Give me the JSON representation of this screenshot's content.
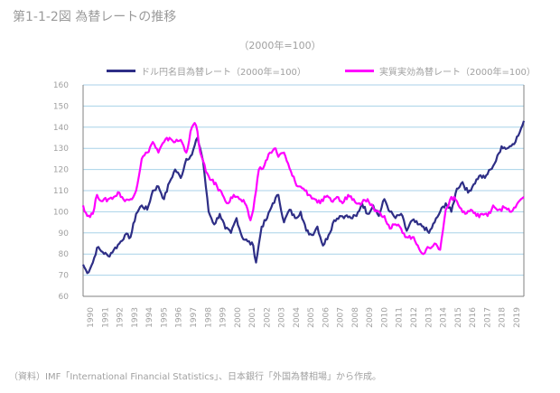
{
  "figure_label": "第1-1-2図 為替レートの推移",
  "chart_data": {
    "type": "line",
    "title": "（2000年=100）",
    "ylabel": "",
    "ylim": [
      60,
      160
    ],
    "yticks": [
      160,
      150,
      140,
      130,
      120,
      110,
      100,
      90,
      80,
      70,
      60
    ],
    "x_count": 210,
    "x_tick_labels": [
      "1990",
      "1991",
      "1992",
      "1993",
      "1994",
      "1995",
      "1996",
      "1997",
      "1998",
      "1999",
      "2000",
      "2001",
      "2002",
      "2003",
      "2004",
      "2005",
      "2006",
      "2007",
      "2008",
      "2009",
      "2010",
      "2011",
      "2012",
      "2013",
      "2014",
      "2015",
      "2016",
      "2017",
      "2018",
      "2019"
    ],
    "grid": true,
    "legend_position": "top",
    "series": [
      {
        "name": "ドル円名目為替レート（2000年=100）",
        "color": "#2e2e86",
        "anchors": [
          [
            0,
            75
          ],
          [
            3,
            71
          ],
          [
            7,
            76
          ],
          [
            10,
            83
          ],
          [
            14,
            81
          ],
          [
            18,
            79
          ],
          [
            22,
            82
          ],
          [
            26,
            85
          ],
          [
            30,
            89
          ],
          [
            34,
            88
          ],
          [
            38,
            99
          ],
          [
            42,
            103
          ],
          [
            46,
            101
          ],
          [
            50,
            110
          ],
          [
            54,
            112
          ],
          [
            58,
            106
          ],
          [
            62,
            114
          ],
          [
            66,
            120
          ],
          [
            70,
            116
          ],
          [
            74,
            125
          ],
          [
            78,
            127
          ],
          [
            82,
            135
          ],
          [
            84,
            130
          ],
          [
            86,
            124
          ],
          [
            90,
            100
          ],
          [
            94,
            94
          ],
          [
            98,
            99
          ],
          [
            102,
            92
          ],
          [
            106,
            90
          ],
          [
            110,
            97
          ],
          [
            114,
            88
          ],
          [
            118,
            86
          ],
          [
            122,
            84
          ],
          [
            124,
            76
          ],
          [
            128,
            93
          ],
          [
            132,
            97
          ],
          [
            136,
            104
          ],
          [
            140,
            108
          ],
          [
            144,
            95
          ],
          [
            148,
            101
          ],
          [
            152,
            97
          ],
          [
            156,
            100
          ],
          [
            160,
            91
          ],
          [
            164,
            89
          ],
          [
            168,
            93
          ],
          [
            172,
            84
          ],
          [
            176,
            89
          ],
          [
            180,
            96
          ],
          [
            184,
            98
          ],
          [
            188,
            98
          ],
          [
            192,
            97
          ],
          [
            196,
            98
          ],
          [
            200,
            104
          ],
          [
            204,
            99
          ],
          [
            208,
            103
          ],
          [
            212,
            98
          ],
          [
            216,
            106
          ],
          [
            220,
            100
          ],
          [
            224,
            97
          ],
          [
            228,
            99
          ],
          [
            232,
            91
          ],
          [
            236,
            96
          ],
          [
            240,
            94
          ],
          [
            244,
            93
          ],
          [
            248,
            90
          ],
          [
            252,
            95
          ],
          [
            256,
            100
          ],
          [
            260,
            104
          ],
          [
            264,
            100
          ],
          [
            268,
            111
          ],
          [
            272,
            114
          ],
          [
            276,
            109
          ],
          [
            280,
            113
          ],
          [
            284,
            117
          ],
          [
            288,
            116
          ],
          [
            292,
            120
          ],
          [
            296,
            124
          ],
          [
            300,
            131
          ],
          [
            304,
            130
          ],
          [
            308,
            132
          ],
          [
            312,
            136
          ],
          [
            315,
            141
          ],
          [
            316,
            143
          ]
        ]
      },
      {
        "name": "実質実効為替レート（2000年=100）",
        "color": "#ff00ff",
        "anchors": [
          [
            0,
            103
          ],
          [
            3,
            98
          ],
          [
            7,
            99
          ],
          [
            10,
            108
          ],
          [
            14,
            105
          ],
          [
            18,
            106
          ],
          [
            22,
            107
          ],
          [
            26,
            109
          ],
          [
            30,
            105
          ],
          [
            34,
            106
          ],
          [
            38,
            110
          ],
          [
            42,
            125
          ],
          [
            46,
            128
          ],
          [
            50,
            133
          ],
          [
            54,
            128
          ],
          [
            58,
            133
          ],
          [
            62,
            135
          ],
          [
            66,
            133
          ],
          [
            70,
            134
          ],
          [
            74,
            128
          ],
          [
            78,
            140
          ],
          [
            80,
            142
          ],
          [
            82,
            138
          ],
          [
            84,
            128
          ],
          [
            88,
            119
          ],
          [
            92,
            115
          ],
          [
            96,
            112
          ],
          [
            100,
            108
          ],
          [
            104,
            104
          ],
          [
            108,
            108
          ],
          [
            112,
            106
          ],
          [
            116,
            104
          ],
          [
            120,
            96
          ],
          [
            122,
            101
          ],
          [
            126,
            120
          ],
          [
            130,
            122
          ],
          [
            134,
            128
          ],
          [
            138,
            130
          ],
          [
            140,
            126
          ],
          [
            144,
            128
          ],
          [
            146,
            124
          ],
          [
            150,
            117
          ],
          [
            154,
            112
          ],
          [
            158,
            111
          ],
          [
            162,
            108
          ],
          [
            166,
            106
          ],
          [
            170,
            104
          ],
          [
            174,
            107
          ],
          [
            178,
            105
          ],
          [
            182,
            107
          ],
          [
            186,
            104
          ],
          [
            190,
            108
          ],
          [
            194,
            106
          ],
          [
            198,
            104
          ],
          [
            204,
            106
          ],
          [
            208,
            102
          ],
          [
            212,
            100
          ],
          [
            216,
            98
          ],
          [
            220,
            92
          ],
          [
            224,
            94
          ],
          [
            228,
            92
          ],
          [
            232,
            88
          ],
          [
            236,
            88
          ],
          [
            240,
            84
          ],
          [
            244,
            80
          ],
          [
            248,
            83
          ],
          [
            252,
            85
          ],
          [
            256,
            82
          ],
          [
            260,
            101
          ],
          [
            264,
            107
          ],
          [
            268,
            105
          ],
          [
            270,
            102
          ],
          [
            274,
            99
          ],
          [
            278,
            101
          ],
          [
            282,
            98
          ],
          [
            286,
            99
          ],
          [
            290,
            98
          ],
          [
            294,
            103
          ],
          [
            298,
            101
          ],
          [
            302,
            102
          ],
          [
            306,
            100
          ],
          [
            310,
            102
          ],
          [
            314,
            106
          ],
          [
            316,
            107
          ]
        ]
      }
    ]
  },
  "source_note": "（資料）IMF「International Financial Statistics」、日本銀行「外国為替相場」から作成。"
}
